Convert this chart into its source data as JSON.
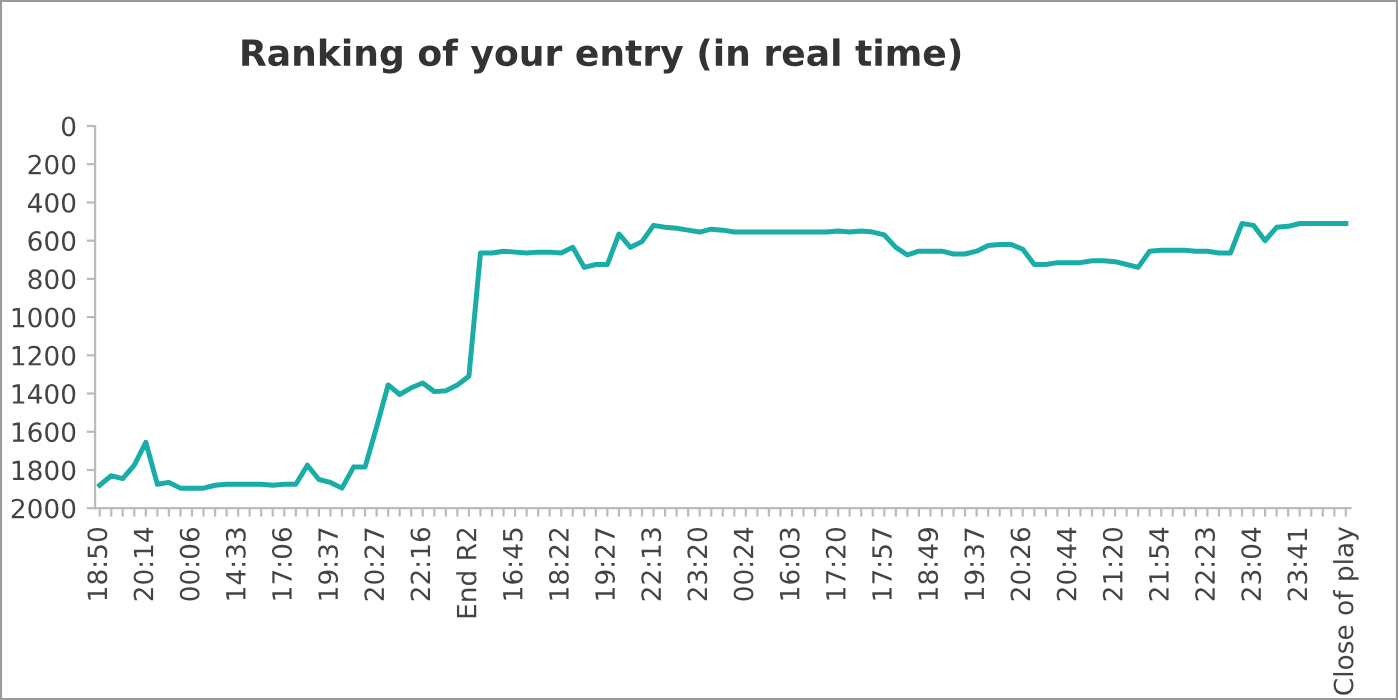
{
  "chart_data": {
    "type": "line",
    "title": "Ranking of your entry (in real time)",
    "categories": [
      "18:50",
      null,
      null,
      null,
      "20:14",
      null,
      null,
      null,
      "00:06",
      null,
      null,
      null,
      "14:33",
      null,
      null,
      null,
      "17:06",
      null,
      null,
      null,
      "19:37",
      null,
      null,
      null,
      "20:27",
      null,
      null,
      null,
      "22:16",
      null,
      null,
      null,
      "End R2",
      null,
      null,
      null,
      "16:45",
      null,
      null,
      null,
      "18:22",
      null,
      null,
      null,
      "19:27",
      null,
      null,
      null,
      "22:13",
      null,
      null,
      null,
      "23:20",
      null,
      null,
      null,
      "00:24",
      null,
      null,
      null,
      "16:03",
      null,
      null,
      null,
      "17:20",
      null,
      null,
      null,
      "17:57",
      null,
      null,
      null,
      "18:49",
      null,
      null,
      null,
      "19:37",
      null,
      null,
      null,
      "20:26",
      null,
      null,
      null,
      "20:44",
      null,
      null,
      null,
      "21:20",
      null,
      null,
      null,
      "21:54",
      null,
      null,
      null,
      "22:23",
      null,
      null,
      null,
      "23:04",
      null,
      null,
      null,
      "23:41",
      null,
      null,
      null,
      "Close of play"
    ],
    "series": [
      {
        "color": "#1aada8",
        "values": [
          1880,
          1830,
          1845,
          1775,
          1655,
          1875,
          1865,
          1895,
          1895,
          1895,
          1880,
          1875,
          1875,
          1875,
          1875,
          1880,
          1875,
          1875,
          1775,
          1850,
          1865,
          1895,
          1785,
          1785,
          1575,
          1355,
          1405,
          1370,
          1345,
          1390,
          1385,
          1355,
          1310,
          665,
          665,
          655,
          660,
          665,
          660,
          660,
          665,
          635,
          740,
          725,
          725,
          565,
          635,
          605,
          520,
          530,
          535,
          545,
          555,
          540,
          545,
          555,
          555,
          555,
          555,
          555,
          555,
          555,
          555,
          555,
          550,
          555,
          550,
          555,
          570,
          635,
          675,
          655,
          655,
          655,
          670,
          670,
          655,
          625,
          620,
          620,
          645,
          725,
          725,
          715,
          715,
          715,
          705,
          705,
          710,
          725,
          740,
          655,
          650,
          650,
          650,
          655,
          655,
          665,
          665,
          510,
          520,
          600,
          530,
          525,
          510,
          510,
          510,
          510,
          510
        ]
      }
    ],
    "ylim": [
      2000,
      0
    ],
    "yticks": [
      0,
      200,
      400,
      600,
      800,
      1000,
      1200,
      1400,
      1600,
      1800,
      2000
    ],
    "grid": false,
    "legend": false,
    "marker": "none",
    "line_style": "solid"
  }
}
